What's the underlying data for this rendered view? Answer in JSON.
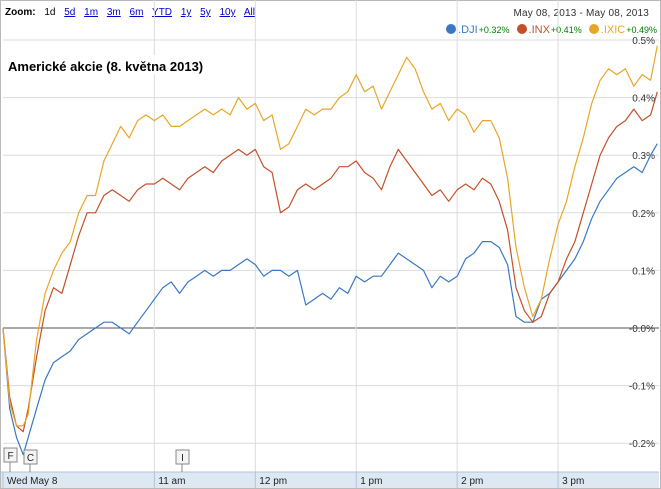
{
  "zoom": {
    "label": "Zoom:",
    "options": [
      "1d",
      "5d",
      "1m",
      "3m",
      "6m",
      "YTD",
      "1y",
      "5y",
      "10y",
      "All"
    ],
    "selected": "1d"
  },
  "date_range": "May 08, 2013  -  May 08, 2013",
  "legend": [
    {
      "name": ".DJI",
      "change": "+0.32%",
      "color": "#3a78c4"
    },
    {
      "name": ".INX",
      "change": "+0.41%",
      "color": "#c4502a"
    },
    {
      "name": ".IXIC",
      "change": "+0.49%",
      "color": "#e8a628"
    }
  ],
  "flags": [
    "F",
    "C",
    "I"
  ],
  "chart_data": {
    "type": "line",
    "title": "Americké akcie (8. května 2013)",
    "x_tick_labels": [
      "Wed May 8",
      "11 am",
      "12 pm",
      "1 pm",
      "2 pm",
      "3 pm"
    ],
    "x_ticks_minutes": [
      0,
      90,
      150,
      210,
      270,
      330
    ],
    "x_range_minutes": [
      0,
      390
    ],
    "y_tick_labels": [
      "-0.2%",
      "-0.1%",
      "-0.0%",
      "0.1%",
      "0.2%",
      "0.3%",
      "0.4%",
      "0.5%"
    ],
    "y_ticks": [
      -0.2,
      -0.1,
      0.0,
      0.1,
      0.2,
      0.3,
      0.4,
      0.5
    ],
    "ylim": [
      -0.25,
      0.5
    ],
    "grid": true,
    "series": [
      {
        "name": ".DJI",
        "x": [
          0,
          4,
          8,
          12,
          15,
          20,
          25,
          30,
          35,
          40,
          45,
          50,
          55,
          60,
          65,
          70,
          75,
          80,
          85,
          90,
          95,
          100,
          105,
          110,
          115,
          120,
          125,
          130,
          135,
          140,
          145,
          150,
          155,
          160,
          165,
          170,
          175,
          180,
          185,
          190,
          195,
          200,
          205,
          210,
          215,
          220,
          225,
          230,
          235,
          240,
          245,
          250,
          255,
          260,
          265,
          270,
          275,
          280,
          285,
          290,
          295,
          300,
          305,
          310,
          315,
          320,
          325,
          330,
          335,
          340,
          345,
          350,
          355,
          360,
          365,
          370,
          375,
          380,
          385,
          389
        ],
        "y": [
          0.0,
          -0.14,
          -0.19,
          -0.22,
          -0.19,
          -0.14,
          -0.09,
          -0.06,
          -0.05,
          -0.04,
          -0.02,
          -0.01,
          0.0,
          0.01,
          0.01,
          0.0,
          -0.01,
          0.01,
          0.03,
          0.05,
          0.07,
          0.08,
          0.06,
          0.08,
          0.09,
          0.1,
          0.09,
          0.1,
          0.1,
          0.11,
          0.12,
          0.11,
          0.09,
          0.1,
          0.1,
          0.09,
          0.1,
          0.04,
          0.05,
          0.06,
          0.05,
          0.07,
          0.06,
          0.09,
          0.08,
          0.09,
          0.09,
          0.11,
          0.13,
          0.12,
          0.11,
          0.1,
          0.07,
          0.09,
          0.08,
          0.09,
          0.12,
          0.13,
          0.15,
          0.15,
          0.14,
          0.11,
          0.02,
          0.01,
          0.01,
          0.05,
          0.06,
          0.08,
          0.1,
          0.12,
          0.15,
          0.19,
          0.22,
          0.24,
          0.26,
          0.27,
          0.28,
          0.27,
          0.3,
          0.32
        ]
      },
      {
        "name": ".INX",
        "x": [
          0,
          4,
          8,
          12,
          15,
          20,
          25,
          30,
          35,
          40,
          45,
          50,
          55,
          60,
          65,
          70,
          75,
          80,
          85,
          90,
          95,
          100,
          105,
          110,
          115,
          120,
          125,
          130,
          135,
          140,
          145,
          150,
          155,
          160,
          165,
          170,
          175,
          180,
          185,
          190,
          195,
          200,
          205,
          210,
          215,
          220,
          225,
          230,
          235,
          240,
          245,
          250,
          255,
          260,
          265,
          270,
          275,
          280,
          285,
          290,
          295,
          300,
          305,
          310,
          315,
          320,
          325,
          330,
          335,
          340,
          345,
          350,
          355,
          360,
          365,
          370,
          375,
          380,
          385,
          389
        ],
        "y": [
          0.0,
          -0.12,
          -0.17,
          -0.18,
          -0.14,
          -0.05,
          0.03,
          0.07,
          0.06,
          0.11,
          0.16,
          0.2,
          0.2,
          0.23,
          0.24,
          0.23,
          0.22,
          0.24,
          0.25,
          0.25,
          0.26,
          0.25,
          0.24,
          0.26,
          0.27,
          0.28,
          0.27,
          0.29,
          0.3,
          0.31,
          0.3,
          0.31,
          0.28,
          0.27,
          0.2,
          0.21,
          0.24,
          0.25,
          0.24,
          0.25,
          0.26,
          0.28,
          0.28,
          0.29,
          0.27,
          0.26,
          0.24,
          0.28,
          0.31,
          0.29,
          0.27,
          0.25,
          0.23,
          0.24,
          0.22,
          0.24,
          0.25,
          0.24,
          0.26,
          0.25,
          0.22,
          0.17,
          0.07,
          0.03,
          0.01,
          0.02,
          0.06,
          0.08,
          0.12,
          0.15,
          0.2,
          0.25,
          0.3,
          0.33,
          0.35,
          0.36,
          0.38,
          0.36,
          0.37,
          0.41
        ]
      },
      {
        "name": ".IXIC",
        "x": [
          0,
          4,
          8,
          12,
          15,
          20,
          25,
          30,
          35,
          40,
          45,
          50,
          55,
          60,
          65,
          70,
          75,
          80,
          85,
          90,
          95,
          100,
          105,
          110,
          115,
          120,
          125,
          130,
          135,
          140,
          145,
          150,
          155,
          160,
          165,
          170,
          175,
          180,
          185,
          190,
          195,
          200,
          205,
          210,
          215,
          220,
          225,
          230,
          235,
          240,
          245,
          250,
          255,
          260,
          265,
          270,
          275,
          280,
          285,
          290,
          295,
          300,
          305,
          310,
          315,
          320,
          325,
          330,
          335,
          340,
          345,
          350,
          355,
          360,
          365,
          370,
          375,
          380,
          385,
          389
        ],
        "y": [
          0.0,
          -0.13,
          -0.17,
          -0.17,
          -0.15,
          -0.02,
          0.06,
          0.1,
          0.13,
          0.15,
          0.2,
          0.23,
          0.23,
          0.29,
          0.32,
          0.35,
          0.33,
          0.36,
          0.37,
          0.36,
          0.37,
          0.35,
          0.35,
          0.36,
          0.37,
          0.38,
          0.37,
          0.38,
          0.37,
          0.4,
          0.38,
          0.39,
          0.36,
          0.37,
          0.31,
          0.32,
          0.35,
          0.38,
          0.37,
          0.38,
          0.38,
          0.4,
          0.41,
          0.44,
          0.41,
          0.42,
          0.38,
          0.41,
          0.44,
          0.47,
          0.45,
          0.41,
          0.38,
          0.39,
          0.36,
          0.38,
          0.37,
          0.34,
          0.36,
          0.36,
          0.33,
          0.26,
          0.14,
          0.07,
          0.02,
          0.05,
          0.12,
          0.18,
          0.22,
          0.28,
          0.33,
          0.39,
          0.43,
          0.45,
          0.44,
          0.45,
          0.42,
          0.44,
          0.43,
          0.49
        ]
      }
    ]
  }
}
